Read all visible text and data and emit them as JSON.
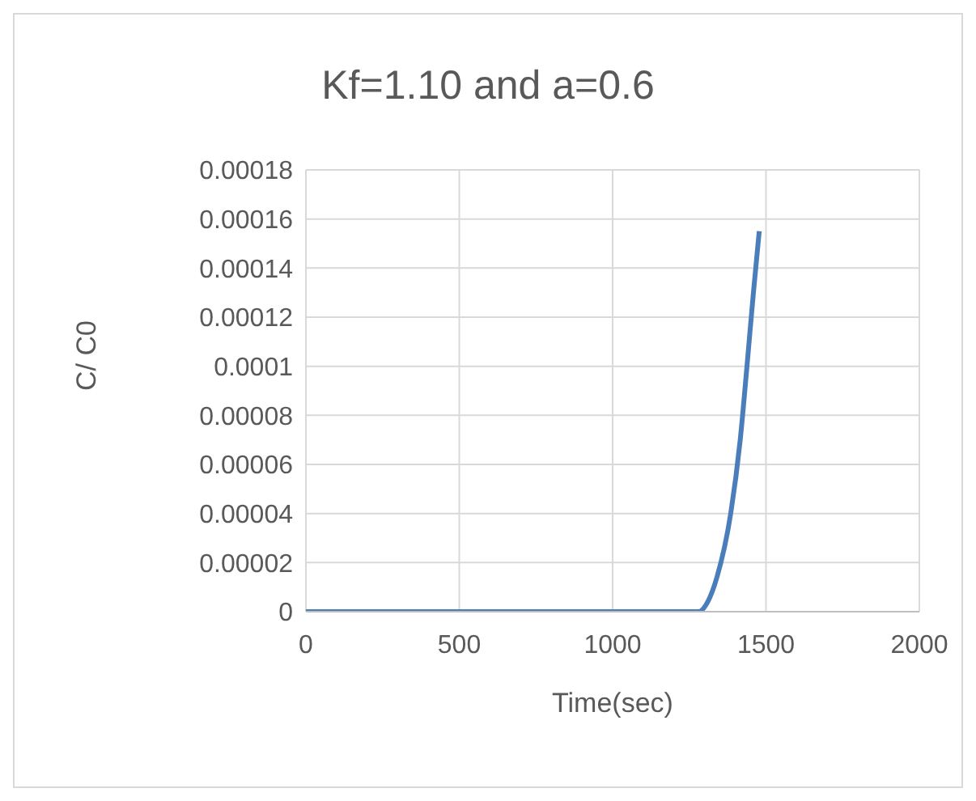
{
  "chart_data": {
    "type": "line",
    "title": "Kf=1.10 and a=0.6",
    "xlabel": "Time(sec)",
    "ylabel": "C/ C0",
    "series": [
      {
        "color": "#4a7ebb",
        "x": [
          0,
          500,
          1000,
          1200,
          1260,
          1280,
          1310,
          1340,
          1385,
          1416,
          1438,
          1459,
          1478
        ],
        "values": [
          0,
          0,
          0,
          0,
          0,
          0,
          4e-06,
          1.4e-05,
          4e-05,
          7e-05,
          0.0001,
          0.00013,
          0.000155
        ]
      }
    ],
    "xlim": [
      0,
      2000
    ],
    "xticks": [
      0,
      500,
      1000,
      1500,
      2000
    ],
    "ylim": [
      0,
      0.00018
    ],
    "yticks": [
      {
        "value": 0,
        "label": "0"
      },
      {
        "value": 2e-05,
        "label": "0.00002"
      },
      {
        "value": 4e-05,
        "label": "0.00004"
      },
      {
        "value": 6e-05,
        "label": "0.00006"
      },
      {
        "value": 8e-05,
        "label": "0.00008"
      },
      {
        "value": 0.0001,
        "label": "0.0001"
      },
      {
        "value": 0.00012,
        "label": "0.00012"
      },
      {
        "value": 0.00014,
        "label": "0.00014"
      },
      {
        "value": 0.00016,
        "label": "0.00016"
      },
      {
        "value": 0.00018,
        "label": "0.00018"
      }
    ],
    "grid": true,
    "marker": "none",
    "line_style": "solid",
    "legend": false
  }
}
